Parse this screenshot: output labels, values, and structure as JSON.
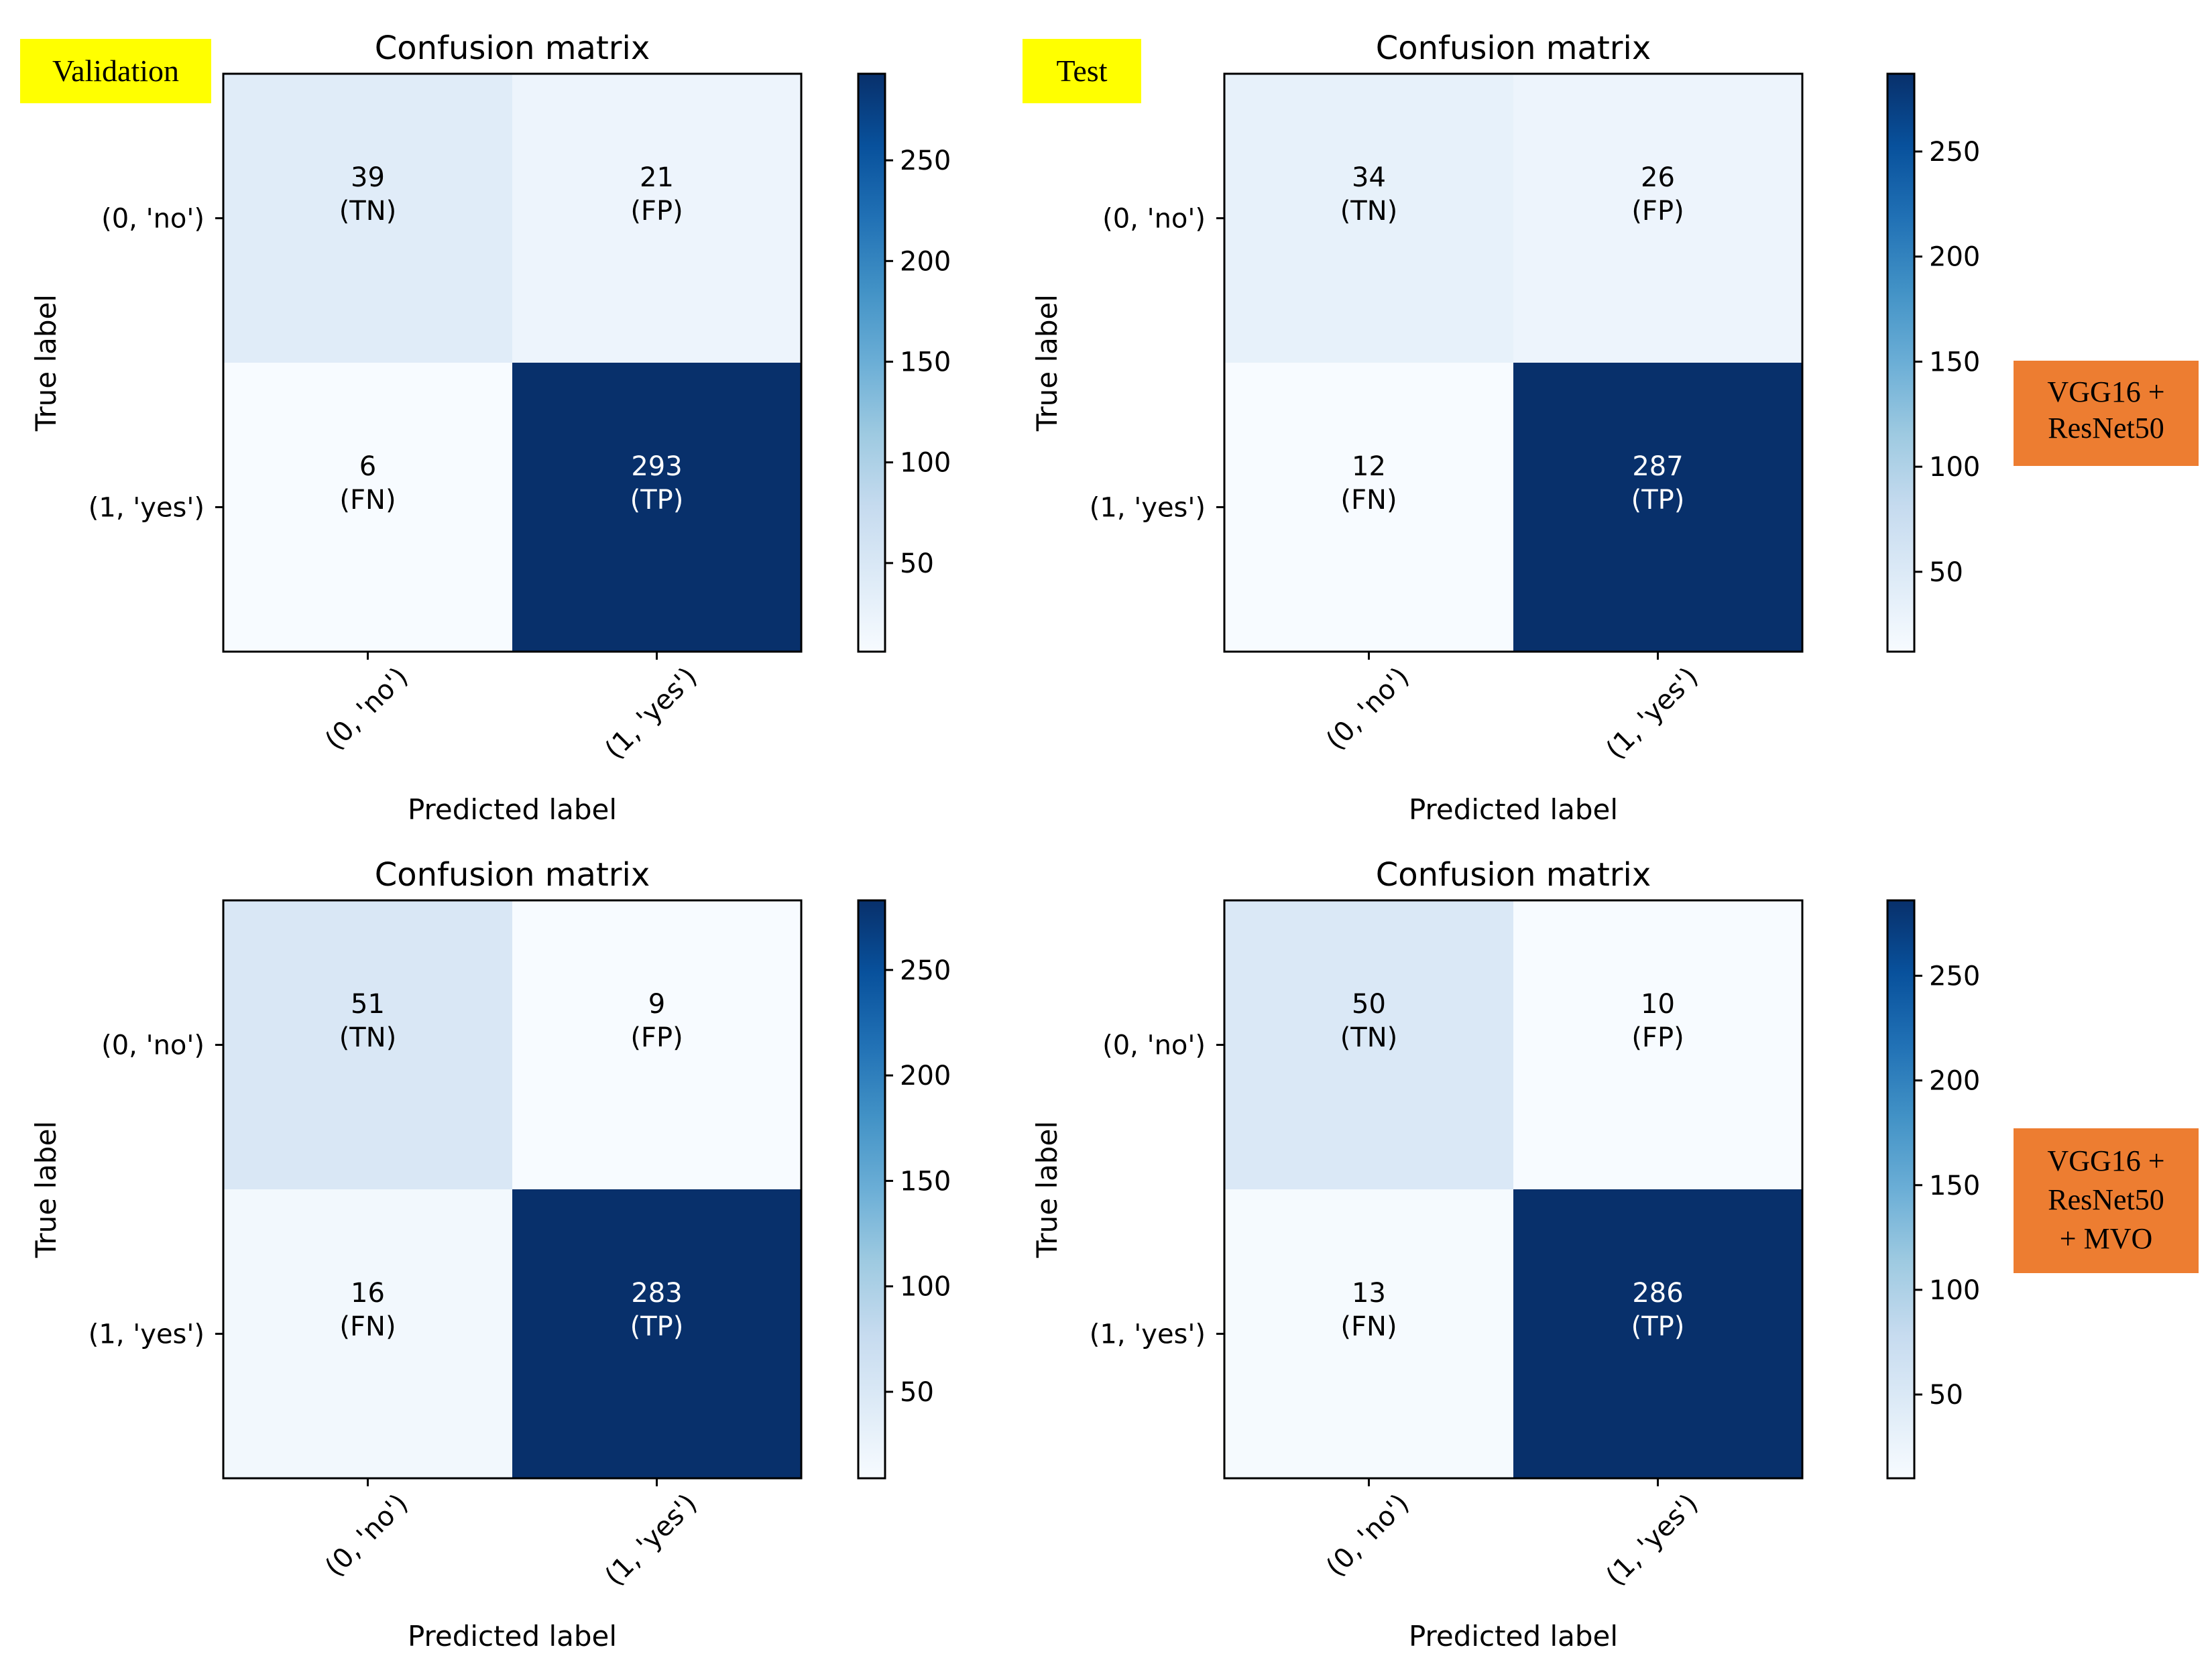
{
  "tags": {
    "validation": "Validation",
    "test": "Test",
    "model1": [
      "VGG16 +",
      "ResNet50"
    ],
    "model2": [
      "VGG16 +",
      "ResNet50",
      "+ MVO"
    ]
  },
  "colors": {
    "colormap": "Blues",
    "cmap_low": "#f7fbff",
    "cmap_high": "#08306b",
    "tag_yellow": "#ffff00",
    "tag_orange": "#ed7d31"
  },
  "chart_data": [
    {
      "type": "heatmap",
      "title": "Confusion matrix",
      "xlabel": "Predicted label",
      "ylabel": "True label",
      "x_categories": [
        "(0, 'no')",
        "(1, 'yes')"
      ],
      "y_categories": [
        "(0, 'no')",
        "(1, 'yes')"
      ],
      "values": [
        [
          39,
          21
        ],
        [
          6,
          293
        ]
      ],
      "cell_tags": [
        [
          "(TN)",
          "(FP)"
        ],
        [
          "(FN)",
          "(TP)"
        ]
      ],
      "colorbar": {
        "ticks": [
          50,
          100,
          150,
          200,
          250
        ],
        "range": [
          6,
          293
        ]
      },
      "grid": false
    },
    {
      "type": "heatmap",
      "title": "Confusion matrix",
      "xlabel": "Predicted label",
      "ylabel": "True label",
      "x_categories": [
        "(0, 'no')",
        "(1, 'yes')"
      ],
      "y_categories": [
        "(0, 'no')",
        "(1, 'yes')"
      ],
      "values": [
        [
          34,
          26
        ],
        [
          12,
          287
        ]
      ],
      "cell_tags": [
        [
          "(TN)",
          "(FP)"
        ],
        [
          "(FN)",
          "(TP)"
        ]
      ],
      "colorbar": {
        "ticks": [
          50,
          100,
          150,
          200,
          250
        ],
        "range": [
          12,
          287
        ]
      },
      "grid": false
    },
    {
      "type": "heatmap",
      "title": "Confusion matrix",
      "xlabel": "Predicted label",
      "ylabel": "True label",
      "x_categories": [
        "(0, 'no')",
        "(1, 'yes')"
      ],
      "y_categories": [
        "(0, 'no')",
        "(1, 'yes')"
      ],
      "values": [
        [
          51,
          9
        ],
        [
          16,
          283
        ]
      ],
      "cell_tags": [
        [
          "(TN)",
          "(FP)"
        ],
        [
          "(FN)",
          "(TP)"
        ]
      ],
      "colorbar": {
        "ticks": [
          50,
          100,
          150,
          200,
          250
        ],
        "range": [
          9,
          283
        ]
      },
      "grid": false
    },
    {
      "type": "heatmap",
      "title": "Confusion matrix",
      "xlabel": "Predicted label",
      "ylabel": "True label",
      "x_categories": [
        "(0, 'no')",
        "(1, 'yes')"
      ],
      "y_categories": [
        "(0, 'no')",
        "(1, 'yes')"
      ],
      "values": [
        [
          50,
          10
        ],
        [
          13,
          286
        ]
      ],
      "cell_tags": [
        [
          "(TN)",
          "(FP)"
        ],
        [
          "(FN)",
          "(TP)"
        ]
      ],
      "colorbar": {
        "ticks": [
          50,
          100,
          150,
          200,
          250
        ],
        "range": [
          10,
          286
        ]
      },
      "grid": false
    }
  ]
}
